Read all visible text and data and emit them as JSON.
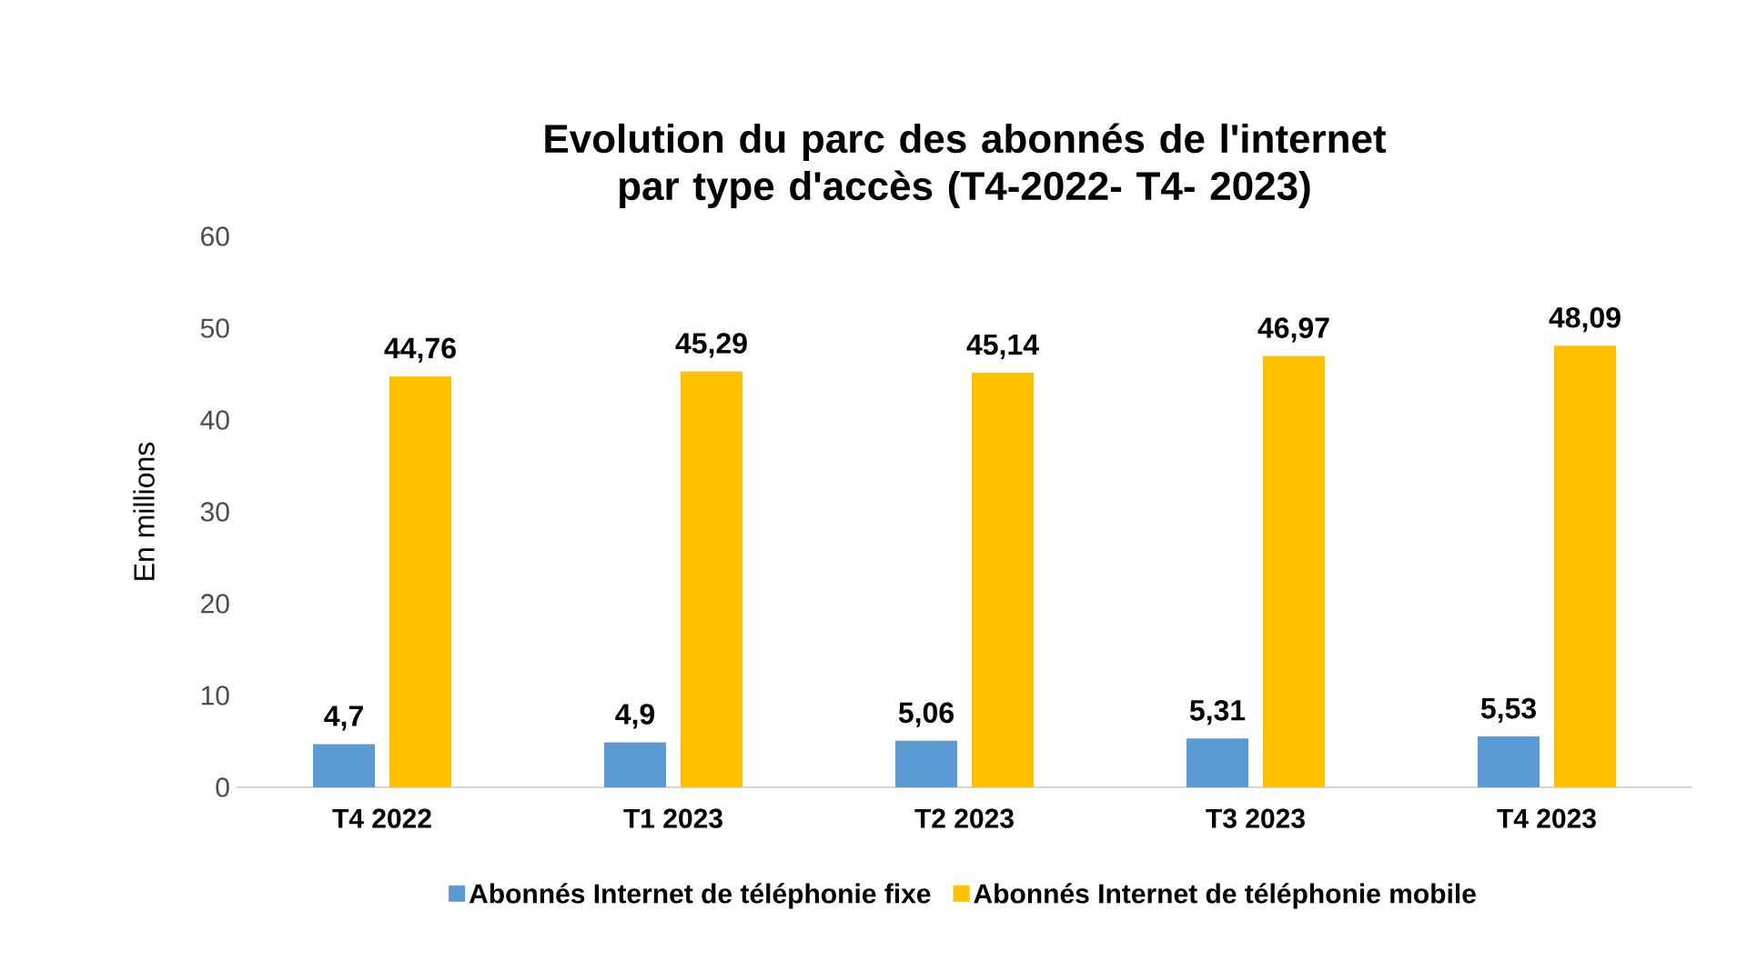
{
  "chart_data": {
    "type": "bar",
    "title": "Evolution du parc des abonnés de l'internet par type d'accès (T4-2022- T4- 2023)",
    "ylabel": "En millions",
    "categories": [
      "T4 2022",
      "T1 2023",
      "T2 2023",
      "T3 2023",
      "T4 2023"
    ],
    "series": [
      {
        "name": "Abonnés Internet de téléphonie fixe",
        "color": "#5b9bd5",
        "values": [
          4.7,
          4.9,
          5.06,
          5.31,
          5.53
        ],
        "value_labels": [
          "4,7",
          "4,9",
          "5,06",
          "5,31",
          "5,53"
        ]
      },
      {
        "name": "Abonnés Internet de téléphonie mobile",
        "color": "#ffc000",
        "values": [
          44.76,
          45.29,
          45.14,
          46.97,
          48.09
        ],
        "value_labels": [
          "44,76",
          "45,29",
          "45,14",
          "46,97",
          "48,09"
        ]
      }
    ],
    "ylim": [
      0,
      60
    ],
    "yticks": [
      0,
      10,
      20,
      30,
      40,
      50,
      60
    ],
    "grid": false,
    "legend": "bottom"
  }
}
